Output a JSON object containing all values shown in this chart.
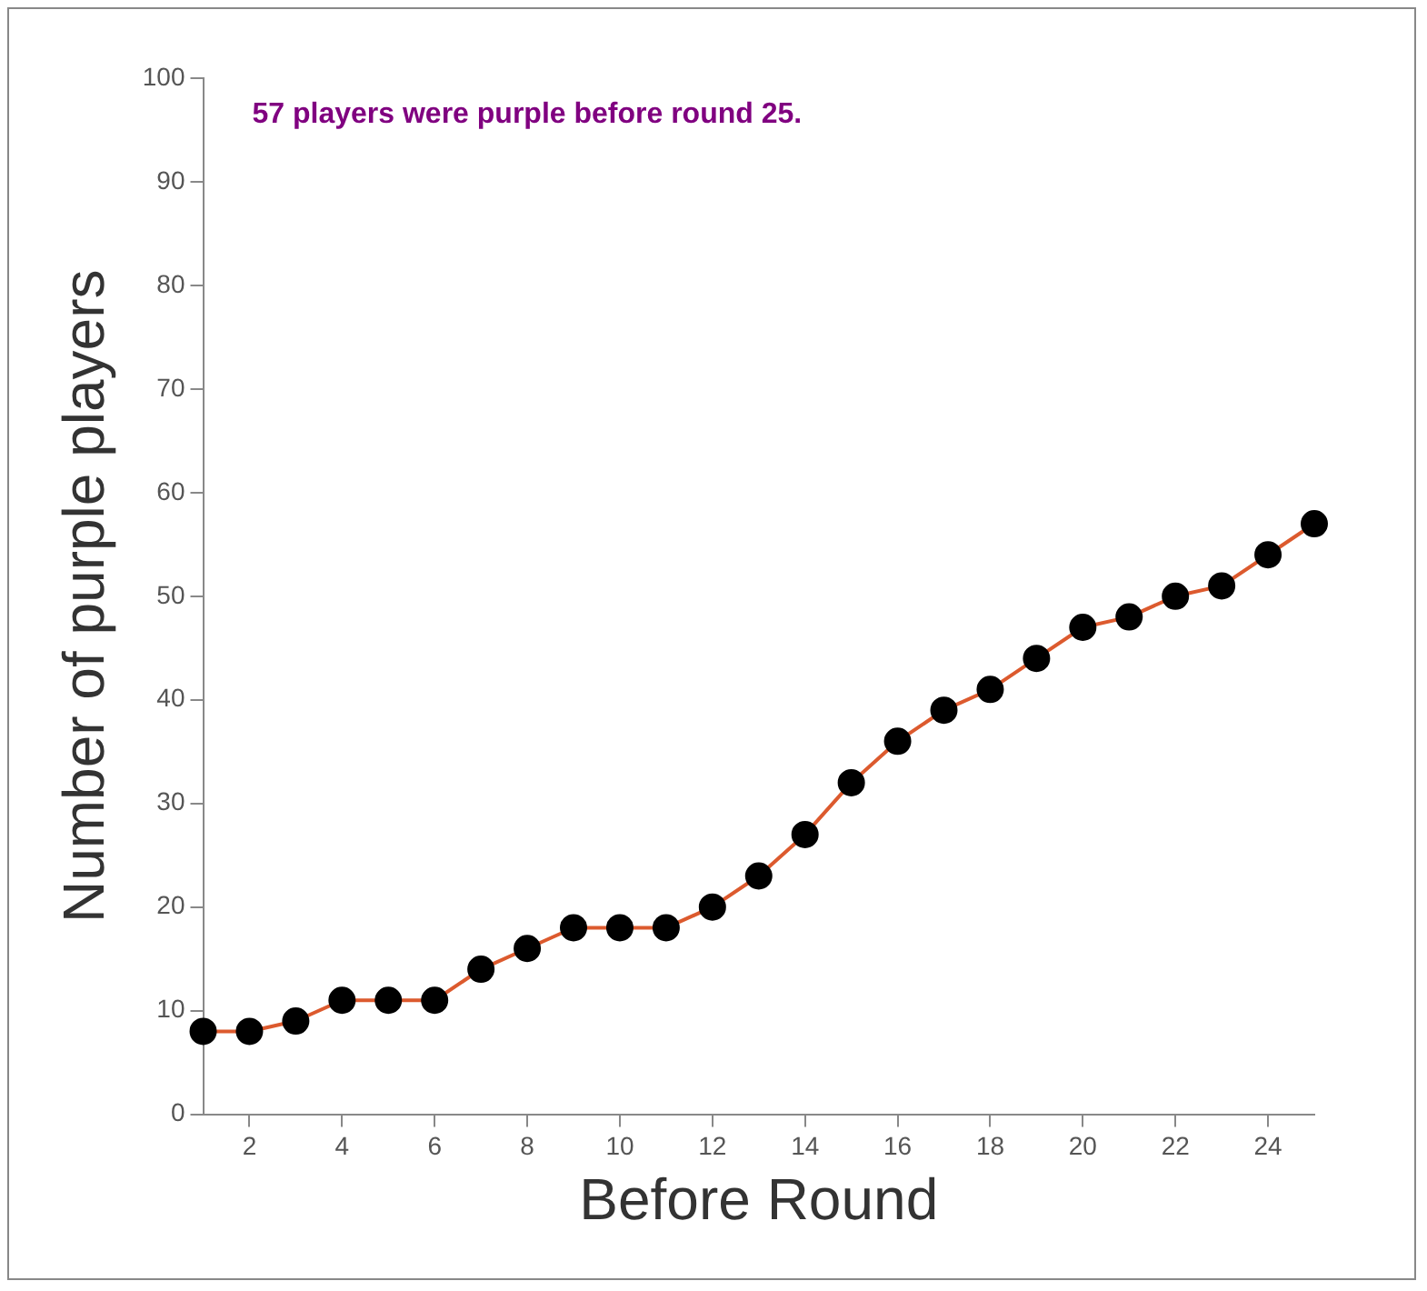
{
  "chart_data": {
    "type": "line",
    "xlabel": "Before Round",
    "ylabel": "Number of purple players",
    "annotations": [
      "57 players were purple before round 25."
    ],
    "x": [
      1,
      2,
      3,
      4,
      5,
      6,
      7,
      8,
      9,
      10,
      11,
      12,
      13,
      14,
      15,
      16,
      17,
      18,
      19,
      20,
      21,
      22,
      23,
      24,
      25
    ],
    "series": [
      {
        "color": "#dc5a2e",
        "values": [
          8,
          8,
          9,
          11,
          11,
          11,
          14,
          16,
          18,
          18,
          18,
          20,
          23,
          27,
          32,
          36,
          39,
          41,
          44,
          47,
          48,
          50,
          51,
          54,
          57
        ]
      }
    ],
    "xlim": [
      1,
      25
    ],
    "xticks": [
      2,
      4,
      6,
      8,
      10,
      12,
      14,
      16,
      18,
      20,
      22,
      24
    ],
    "ylim": [
      0,
      100
    ],
    "yticks": [
      0,
      10,
      20,
      30,
      40,
      50,
      60,
      70,
      80,
      90,
      100
    ],
    "grid": false,
    "legend": false,
    "marker": "circle",
    "line_style": "solid"
  }
}
